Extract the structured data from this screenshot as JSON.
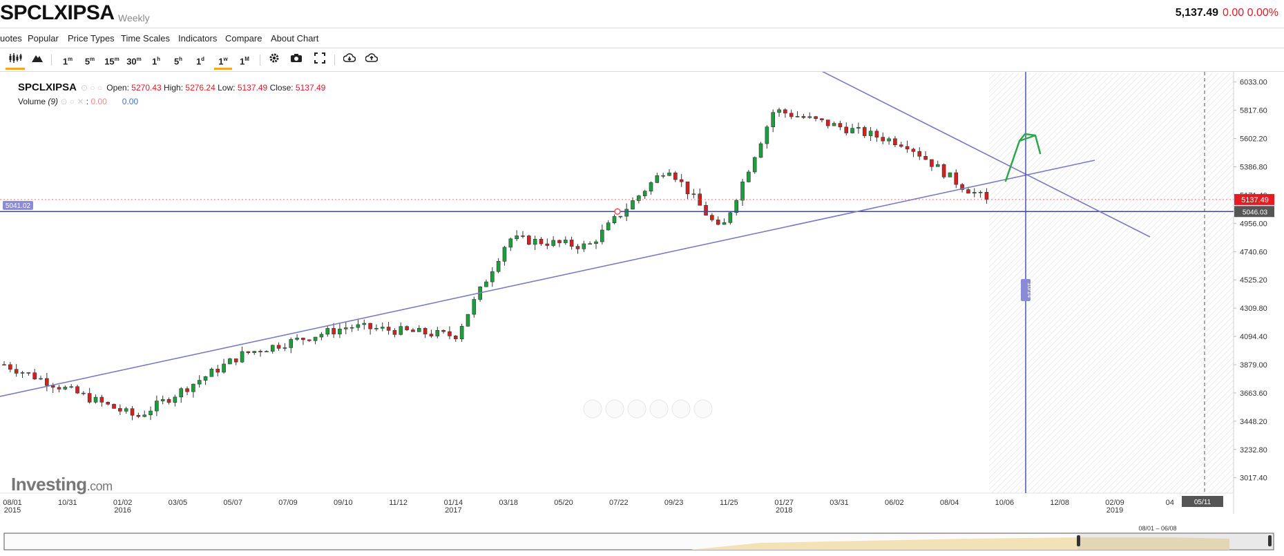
{
  "header": {
    "symbol": "SPCLXIPSA",
    "period": "Weekly",
    "last_price": "5,137.49",
    "change": "0.00 0.00%"
  },
  "menu": [
    "uotes",
    "Popular",
    "Price Types",
    "Time Scales",
    "Indicators",
    "Compare",
    "About Chart"
  ],
  "toolbar": {
    "timeframes": [
      "1m",
      "5m",
      "15m",
      "30m",
      "1h",
      "5h",
      "1d",
      "1w",
      "1M"
    ],
    "selected_timeframe": "1w",
    "icons": [
      "candlestick-icon",
      "mountain-icon",
      "gear-icon",
      "camera-icon",
      "fullscreen-icon",
      "download-icon",
      "upload-icon"
    ]
  },
  "legend": {
    "symbol": "SPCLXIPSA",
    "open_label": "Open:",
    "open": "5270.43",
    "high_label": "High:",
    "high": "5276.24",
    "low_label": "Low:",
    "low": "5137.49",
    "close_label": "Close:",
    "close": "5137.49",
    "volume_label": "Volume",
    "volume_period": "(9)",
    "volume_val1": "0.00",
    "volume_val2": "0.00"
  },
  "chart_data": {
    "type": "candlestick",
    "title": "",
    "ylim": [
      2900,
      6100
    ],
    "y_ticks": [
      "6033.00",
      "5817.60",
      "5602.20",
      "5386.80",
      "5171.40",
      "4956.00",
      "4740.60",
      "4525.20",
      "4309.80",
      "4094.40",
      "3879.00",
      "3663.60",
      "3448.20",
      "3232.80",
      "3017.40"
    ],
    "x_ticks": [
      {
        "label": "08/01",
        "sub": "2015"
      },
      {
        "label": "10/31",
        "sub": ""
      },
      {
        "label": "01/02",
        "sub": "2016"
      },
      {
        "label": "03/05",
        "sub": ""
      },
      {
        "label": "05/07",
        "sub": ""
      },
      {
        "label": "07/09",
        "sub": ""
      },
      {
        "label": "09/10",
        "sub": ""
      },
      {
        "label": "11/12",
        "sub": ""
      },
      {
        "label": "01/14",
        "sub": "2017"
      },
      {
        "label": "03/18",
        "sub": ""
      },
      {
        "label": "05/20",
        "sub": ""
      },
      {
        "label": "07/22",
        "sub": ""
      },
      {
        "label": "09/23",
        "sub": ""
      },
      {
        "label": "11/25",
        "sub": ""
      },
      {
        "label": "01/27",
        "sub": "2018"
      },
      {
        "label": "03/31",
        "sub": ""
      },
      {
        "label": "06/02",
        "sub": ""
      },
      {
        "label": "08/04",
        "sub": ""
      },
      {
        "label": "10/06",
        "sub": ""
      },
      {
        "label": "12/08",
        "sub": ""
      },
      {
        "label": "02/09",
        "sub": "2019"
      },
      {
        "label": "04",
        "sub": ""
      }
    ],
    "last_price_label": "5137.49",
    "crosshair_price_label": "5046.03",
    "left_price_label": "5041.02",
    "crosshair_date_label": "10/14",
    "bottom_date_label": "05/11",
    "navigator_range_label": "08/01 – 06/08",
    "key_points": [
      {
        "date": "08/2015",
        "close": 3880
      },
      {
        "date": "01/2016",
        "close": 3480
      },
      {
        "date": "05/2016",
        "close": 3960
      },
      {
        "date": "09/2016",
        "close": 4170
      },
      {
        "date": "01/2017",
        "close": 4100
      },
      {
        "date": "03/2017",
        "close": 4840
      },
      {
        "date": "06/2017",
        "close": 4780
      },
      {
        "date": "09/2017",
        "close": 5390
      },
      {
        "date": "11/2017",
        "close": 4890
      },
      {
        "date": "01/2018",
        "close": 5820
      },
      {
        "date": "06/2018",
        "close": 5560
      },
      {
        "date": "08/2018",
        "close": 5250
      },
      {
        "date": "09/2018",
        "close": 5137.49
      }
    ],
    "annotations": [
      "horizontal line at 5046.03",
      "rising trendline",
      "falling trendline",
      "green arrow"
    ]
  },
  "watermark": {
    "brand": "Investing",
    "domain": ".com"
  }
}
